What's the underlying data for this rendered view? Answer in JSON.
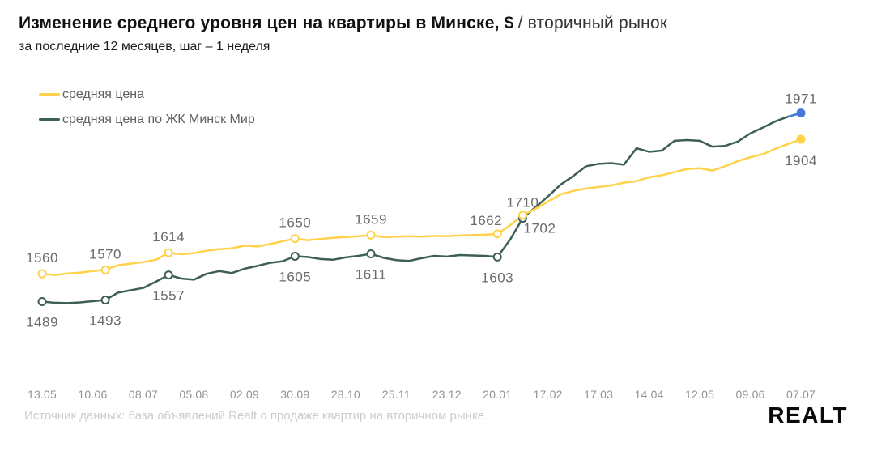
{
  "header": {
    "title_main": "Изменение среднего уровня цен на квартиры в Минске, $",
    "title_suffix": "/ вторичный рынок",
    "subtitle": "за последние 12 месяцев, шаг – 1 неделя"
  },
  "footer": {
    "source": "Источник данных: база объявлений Realt о продаже квартир на вторичном рынке",
    "logo_text": "Realt"
  },
  "chart_data": {
    "type": "line",
    "title": "Изменение среднего уровня цен на квартиры в Минске, $ / вторичный рынок",
    "subtitle": "за последние 12 месяцев, шаг – 1 неделя",
    "x_tick_labels": [
      "13.05",
      "10.06",
      "08.07",
      "05.08",
      "02.09",
      "30.09",
      "28.10",
      "25.11",
      "23.12",
      "20.01",
      "17.02",
      "17.03",
      "14.04",
      "12.05",
      "09.06",
      "07.07"
    ],
    "weeks_per_tick": 4,
    "ylim": [
      1450,
      2000
    ],
    "grid": false,
    "legend_position": "top-left",
    "label_color": "#6a6a6a",
    "series": [
      {
        "name": "средняя цена по ЖК Минск Мир",
        "color": "#3E5F53",
        "end_segment_color": "#4678D9",
        "end_dot_color": "#4678D9",
        "values": [
          1489,
          1486,
          1485,
          1487,
          1490,
          1493,
          1512,
          1518,
          1524,
          1540,
          1557,
          1548,
          1545,
          1560,
          1567,
          1562,
          1573,
          1580,
          1588,
          1592,
          1605,
          1603,
          1598,
          1596,
          1602,
          1606,
          1611,
          1601,
          1595,
          1593,
          1600,
          1606,
          1604,
          1608,
          1607,
          1606,
          1603,
          1647,
          1702,
          1730,
          1758,
          1788,
          1810,
          1835,
          1841,
          1843,
          1839,
          1881,
          1872,
          1875,
          1900,
          1902,
          1900,
          1885,
          1887,
          1898,
          1919,
          1934,
          1950,
          1962,
          1971
        ],
        "labeled_points": [
          {
            "week": 0,
            "text": "1489",
            "pos": "below"
          },
          {
            "week": 5,
            "text": "1493",
            "pos": "below"
          },
          {
            "week": 10,
            "text": "1557",
            "pos": "below"
          },
          {
            "week": 20,
            "text": "1605",
            "pos": "below"
          },
          {
            "week": 26,
            "text": "1611",
            "pos": "below"
          },
          {
            "week": 36,
            "text": "1603",
            "pos": "below"
          },
          {
            "week": 38,
            "text": "1702",
            "pos": "below",
            "dx": 21,
            "dy": -13
          },
          {
            "week": 60,
            "text": "1971",
            "pos": "above",
            "dy": 2,
            "end": true
          }
        ]
      },
      {
        "name": "средняя цена",
        "color": "#FFD24A",
        "end_dot_color": "#FFD24A",
        "values": [
          1560,
          1557,
          1561,
          1563,
          1567,
          1570,
          1582,
          1586,
          1590,
          1596,
          1614,
          1610,
          1613,
          1619,
          1623,
          1625,
          1632,
          1630,
          1636,
          1643,
          1650,
          1646,
          1649,
          1652,
          1654,
          1656,
          1659,
          1654,
          1655,
          1656,
          1655,
          1657,
          1656,
          1658,
          1659,
          1660,
          1662,
          1684,
          1710,
          1726,
          1745,
          1763,
          1772,
          1778,
          1782,
          1786,
          1793,
          1797,
          1807,
          1812,
          1820,
          1828,
          1830,
          1824,
          1835,
          1848,
          1858,
          1866,
          1880,
          1892,
          1904
        ],
        "labeled_points": [
          {
            "week": 0,
            "text": "1560",
            "pos": "above"
          },
          {
            "week": 5,
            "text": "1570",
            "pos": "above"
          },
          {
            "week": 10,
            "text": "1614",
            "pos": "above"
          },
          {
            "week": 20,
            "text": "1650",
            "pos": "above"
          },
          {
            "week": 26,
            "text": "1659",
            "pos": "above"
          },
          {
            "week": 36,
            "text": "1662",
            "pos": "above",
            "dx": -14,
            "dy": 3
          },
          {
            "week": 38,
            "text": "1710",
            "pos": "above",
            "dy": 4
          },
          {
            "week": 60,
            "text": "1904",
            "pos": "below",
            "dy": 1,
            "end": true
          }
        ]
      }
    ]
  }
}
